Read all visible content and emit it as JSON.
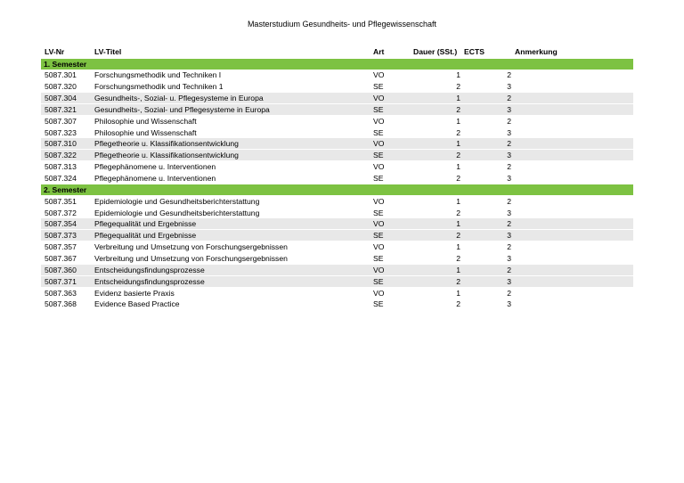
{
  "header": {
    "title": "Masterstudium Gesundheits- und Pflegewissenschaft"
  },
  "table": {
    "columns": [
      "LV-Nr",
      "LV-Titel",
      "Art",
      "Dauer (SSt.)",
      "ECTS",
      "Anmerkung"
    ],
    "sections": [
      {
        "label": "1. Semester",
        "rows": [
          [
            "5087.301",
            "Forschungsmethodik und Techniken I",
            "VO",
            1,
            2
          ],
          [
            "5087.320",
            "Forschungsmethodik und Techniken 1",
            "SE",
            2,
            3
          ],
          [
            "5087.304",
            "Gesundheits-, Sozial- u. Pflegesysteme in Europa",
            "VO",
            1,
            2
          ],
          [
            "5087.321",
            "Gesundheits-, Sozial- und Pflegesysteme in Europa",
            "SE",
            2,
            3
          ],
          [
            "5087.307",
            "Philosophie und Wissenschaft",
            "VO",
            1,
            2
          ],
          [
            "5087.323",
            "Philosophie und Wissenschaft",
            "SE",
            2,
            3
          ],
          [
            "5087.310",
            "Pflegetheorie u. Klassifikationsentwicklung",
            "VO",
            1,
            2
          ],
          [
            "5087.322",
            "Pflegetheorie u. Klassifikationsentwicklung",
            "SE",
            2,
            3
          ],
          [
            "5087.313",
            "Pflegephänomene u. Interventionen",
            "VO",
            1,
            2
          ],
          [
            "5087.324",
            "Pflegephänomene u. Interventionen",
            "SE",
            2,
            3
          ]
        ]
      },
      {
        "label": "2. Semester",
        "rows": [
          [
            "5087.351",
            "Epidemiologie und Gesundheitsberichterstattung",
            "VO",
            1,
            2
          ],
          [
            "5087.372",
            "Epidemiologie und Gesundheitsberichterstattung",
            "SE",
            2,
            3
          ],
          [
            "5087.354",
            "Pflegequalität und Ergebnisse",
            "VO",
            1,
            2
          ],
          [
            "5087.373",
            "Pflegequalität und Ergebnisse",
            "SE",
            2,
            3
          ],
          [
            "5087.357",
            "Verbreitung und Umsetzung von Forschungsergebnissen",
            "VO",
            1,
            2
          ],
          [
            "5087.367",
            "Verbreitung und Umsetzung von Forschungsergebnissen",
            "SE",
            2,
            3
          ],
          [
            "5087.360",
            "Entscheidungsfindungsprozesse",
            "VO",
            1,
            2
          ],
          [
            "5087.371",
            "Entscheidungsfindungsprozesse",
            "SE",
            2,
            3
          ],
          [
            "5087.363",
            "Evidenz basierte Praxis",
            "VO",
            1,
            2
          ],
          [
            "5087.368",
            "Evidence Based Practice",
            "SE",
            2,
            3
          ]
        ]
      }
    ]
  }
}
